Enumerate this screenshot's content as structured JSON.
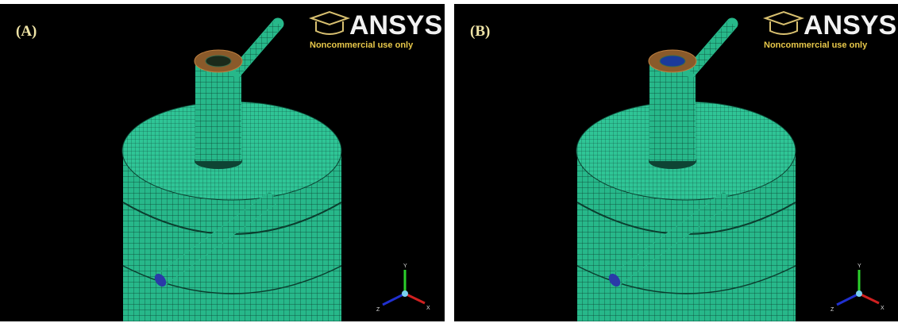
{
  "panels": [
    {
      "label": "(A)",
      "logo": "ANSYS",
      "notice": "Noncommercial use only",
      "axes": [
        "Y",
        "X",
        "Z"
      ]
    },
    {
      "label": "(B)",
      "logo": "ANSYS",
      "notice": "Noncommercial use only",
      "axes": [
        "Y",
        "X",
        "Z"
      ]
    }
  ]
}
